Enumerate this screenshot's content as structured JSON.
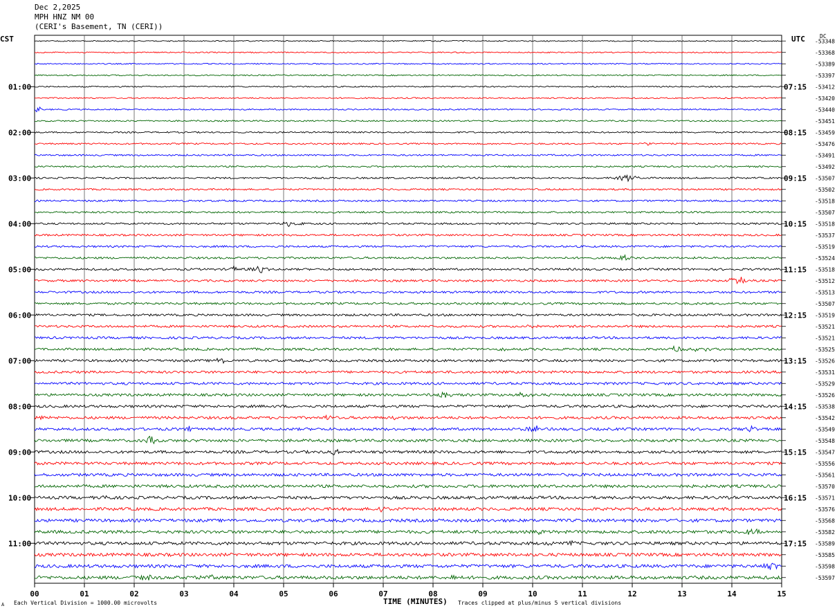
{
  "header": {
    "date": "Dec 2,2025",
    "station": "MPH HNZ NM 00",
    "location": "(CERI's Basement, TN (CERI))"
  },
  "labels": {
    "left_tz": "CST",
    "right_tz": "UTC",
    "dc": "DC",
    "x_title": "TIME (MINUTES)",
    "scale_note": "Each Vertical Division = 1000.00 microvolts",
    "clip_note": "Traces clipped at plus/minus 5 vertical divisions",
    "corner_mark": "A"
  },
  "colors": {
    "trace_cycle": [
      "#000000",
      "#ff0000",
      "#0000ff",
      "#006400"
    ],
    "grid": "#555555"
  },
  "chart_data": {
    "type": "line",
    "title": "",
    "xlabel": "TIME (MINUTES)",
    "xlim": [
      0,
      15
    ],
    "x_ticks": [
      "00",
      "01",
      "02",
      "03",
      "04",
      "05",
      "06",
      "07",
      "08",
      "09",
      "10",
      "11",
      "12",
      "13",
      "14",
      "15"
    ],
    "rows": 48,
    "left_hour_labels": [
      "01:00",
      "02:00",
      "03:00",
      "04:00",
      "05:00",
      "06:00",
      "07:00",
      "08:00",
      "09:00",
      "10:00",
      "11:00"
    ],
    "right_hour_labels": [
      "07:15",
      "08:15",
      "09:15",
      "10:15",
      "11:15",
      "12:15",
      "13:15",
      "14:15",
      "15:15",
      "16:15",
      "17:15"
    ],
    "dc_values": [
      "-53348",
      "-53368",
      "-53389",
      "-53397",
      "-53412",
      "-53420",
      "-53440",
      "-53451",
      "-53459",
      "-53476",
      "-53491",
      "-53492",
      "-53507",
      "-53502",
      "-53518",
      "-53507",
      "-53518",
      "-53537",
      "-53519",
      "-53524",
      "-53518",
      "-53512",
      "-53513",
      "-53507",
      "-53519",
      "-53521",
      "-53521",
      "-53525",
      "-53526",
      "-53531",
      "-53529",
      "-53526",
      "-53538",
      "-53542",
      "-53549",
      "-53548",
      "-53547",
      "-53556",
      "-53561",
      "-53570",
      "-53571",
      "-53576",
      "-53568",
      "-53582",
      "-53589",
      "-53585",
      "-53598",
      "-53597"
    ],
    "grid": true
  }
}
